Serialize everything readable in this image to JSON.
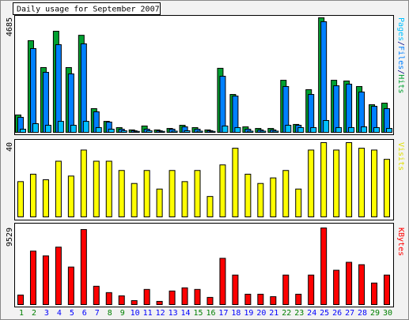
{
  "chart_data": [
    {
      "type": "bar",
      "title": "Daily usage for September 2007",
      "legend_separator": "/",
      "series": [
        {
          "name": "Pages",
          "color": "#00c0ff",
          "values": [
            130,
            355,
            290,
            450,
            290,
            450,
            195,
            130,
            65,
            40,
            65,
            40,
            50,
            65,
            50,
            40,
            260,
            195,
            50,
            50,
            50,
            290,
            195,
            195,
            485,
            195,
            195,
            225,
            195,
            160
          ]
        },
        {
          "name": "Files",
          "color": "#0080ff",
          "values": [
            615,
            3425,
            2455,
            3585,
            2390,
            3620,
            840,
            420,
            130,
            65,
            130,
            65,
            130,
            225,
            130,
            65,
            2295,
            1485,
            130,
            100,
            100,
            1875,
            290,
            1550,
            4525,
            1905,
            1970,
            1650,
            1065,
            970
          ]
        },
        {
          "name": "Hits",
          "color": "#00a030",
          "values": [
            710,
            3750,
            2650,
            4135,
            2650,
            3970,
            970,
            450,
            195,
            100,
            260,
            100,
            160,
            290,
            195,
            100,
            2620,
            1550,
            225,
            160,
            160,
            2130,
            325,
            1745,
            4685,
            2130,
            2100,
            1875,
            1130,
            1195
          ]
        }
      ],
      "ylim": [
        0,
        4685
      ],
      "yticks": [
        4685
      ]
    },
    {
      "type": "bar",
      "series": [
        {
          "name": "Visits",
          "color": "#ffff00",
          "values": [
            19,
            23,
            20,
            30,
            22,
            36,
            30,
            30,
            25,
            18,
            25,
            15,
            25,
            19,
            25,
            11,
            28,
            37,
            23,
            18,
            21,
            25,
            15,
            36,
            40,
            36,
            40,
            37,
            36,
            31
          ]
        }
      ],
      "ylim": [
        0,
        40
      ],
      "yticks": [
        40
      ]
    },
    {
      "type": "bar",
      "categories": [
        "1",
        "2",
        "3",
        "4",
        "5",
        "6",
        "7",
        "8",
        "9",
        "10",
        "11",
        "12",
        "13",
        "14",
        "15",
        "16",
        "17",
        "18",
        "19",
        "20",
        "21",
        "22",
        "23",
        "24",
        "25",
        "26",
        "27",
        "28",
        "29",
        "30"
      ],
      "category_colors": [
        "#008000",
        "#008000",
        "#0000ff",
        "#0000ff",
        "#0000ff",
        "#0000ff",
        "#0000ff",
        "#008000",
        "#008000",
        "#0000ff",
        "#0000ff",
        "#0000ff",
        "#0000ff",
        "#0000ff",
        "#008000",
        "#008000",
        "#0000ff",
        "#0000ff",
        "#0000ff",
        "#0000ff",
        "#0000ff",
        "#008000",
        "#008000",
        "#0000ff",
        "#0000ff",
        "#0000ff",
        "#0000ff",
        "#0000ff",
        "#008000",
        "#008000"
      ],
      "series": [
        {
          "name": "KBytes",
          "color": "#ff0000",
          "values": [
            1190,
            6650,
            6055,
            7145,
            4665,
            9330,
            2280,
            1490,
            1090,
            495,
            1885,
            400,
            1690,
            2085,
            1885,
            895,
            5755,
            3670,
            1290,
            1290,
            990,
            3670,
            1290,
            3670,
            9529,
            4270,
            5260,
            4960,
            2680,
            3670
          ]
        }
      ],
      "ylim": [
        0,
        9529
      ],
      "yticks": [
        9529
      ]
    }
  ]
}
